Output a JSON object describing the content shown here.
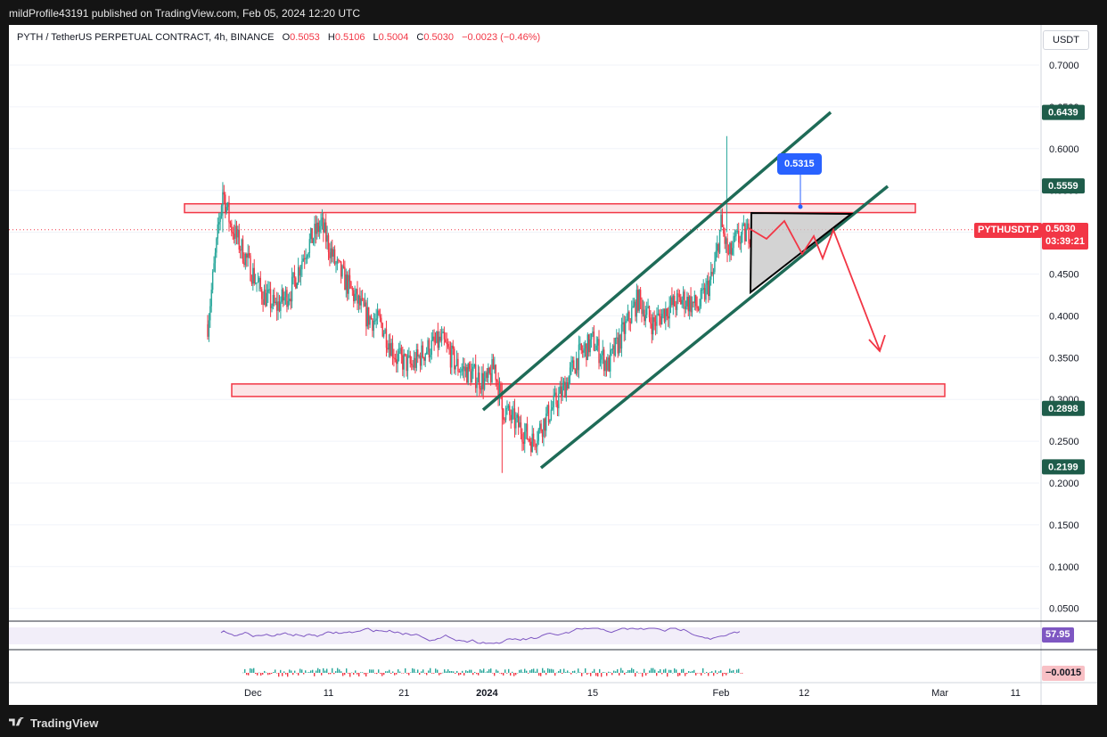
{
  "header": {
    "publisher": "mildProfile43191 published on TradingView.com, Feb 05, 2024 12:20 UTC"
  },
  "legend": {
    "symbol": "PYTH / TetherUS PERPETUAL CONTRACT, 4h, BINANCE",
    "o_label": "O",
    "o": "0.5053",
    "h_label": "H",
    "h": "0.5106",
    "l_label": "L",
    "l": "0.5004",
    "c_label": "C",
    "c": "0.5030",
    "change": "−0.0023 (−0.46%)"
  },
  "currency": "USDT",
  "footer": {
    "brand": "TradingView"
  },
  "colors": {
    "up": "#26a69a",
    "down": "#f23645",
    "channel": "#1e6b57",
    "zone_stroke": "#f23645",
    "zone_fill": "#fce4e6",
    "rsi": "#7e57c2",
    "callout": "#2962ff",
    "tag_dark": "#1e5c4a"
  },
  "chart_data": {
    "type": "candlestick",
    "symbol": "PYTHUSDT.P",
    "ylim": [
      0.04,
      0.72
    ],
    "y_ticks": [
      "0.7000",
      "0.6500",
      "0.6000",
      "0.5500",
      "0.5000",
      "0.4500",
      "0.4000",
      "0.3500",
      "0.3000",
      "0.2500",
      "0.2000",
      "0.1500",
      "0.1000",
      "0.0500"
    ],
    "x_ticks": [
      "Dec",
      "11",
      "21",
      "2024",
      "15",
      "Feb",
      "12",
      "Mar",
      "11"
    ],
    "current_price": {
      "label": "PYTHUSDT.P",
      "value": "0.5030",
      "countdown": "03:39:21"
    },
    "price_tags": [
      "0.6439",
      "0.5559",
      "0.2898",
      "0.2199"
    ],
    "callout": "0.5315",
    "resistance_zone": [
      0.5235,
      0.534
    ],
    "support_zone": [
      0.3035,
      0.3185
    ],
    "path": [
      [
        "Nov 25",
        0.39
      ],
      [
        "Nov 26",
        0.47
      ],
      [
        "Nov 27",
        0.55
      ],
      [
        "Nov 28",
        0.51
      ],
      [
        "Nov 30",
        0.47
      ],
      [
        "Dec 02",
        0.43
      ],
      [
        "Dec 04",
        0.41
      ],
      [
        "Dec 06",
        0.43
      ],
      [
        "Dec 08",
        0.48
      ],
      [
        "Dec 10",
        0.51
      ],
      [
        "Dec 12",
        0.46
      ],
      [
        "Dec 14",
        0.43
      ],
      [
        "Dec 16",
        0.4
      ],
      [
        "Dec 18",
        0.39
      ],
      [
        "Dec 20",
        0.35
      ],
      [
        "Dec 22",
        0.34
      ],
      [
        "Dec 24",
        0.36
      ],
      [
        "Dec 26",
        0.37
      ],
      [
        "Dec 28",
        0.34
      ],
      [
        "Dec 30",
        0.33
      ],
      [
        "Jan 01",
        0.32
      ],
      [
        "Jan 02",
        0.34
      ],
      [
        "Jan 03",
        0.29
      ],
      [
        "Jan 05",
        0.27
      ],
      [
        "Jan 07",
        0.25
      ],
      [
        "Jan 09",
        0.28
      ],
      [
        "Jan 11",
        0.31
      ],
      [
        "Jan 13",
        0.35
      ],
      [
        "Jan 15",
        0.37
      ],
      [
        "Jan 17",
        0.34
      ],
      [
        "Jan 19",
        0.38
      ],
      [
        "Jan 21",
        0.42
      ],
      [
        "Jan 23",
        0.39
      ],
      [
        "Jan 25",
        0.41
      ],
      [
        "Jan 27",
        0.42
      ],
      [
        "Jan 29",
        0.41
      ],
      [
        "Jan 31",
        0.45
      ],
      [
        "Feb 01",
        0.51
      ],
      [
        "Feb 02",
        0.47
      ],
      [
        "Feb 03",
        0.49
      ],
      [
        "Feb 05",
        0.503
      ]
    ],
    "rsi": {
      "value": "57.95"
    },
    "macd": {
      "value": "−0.0015"
    }
  }
}
